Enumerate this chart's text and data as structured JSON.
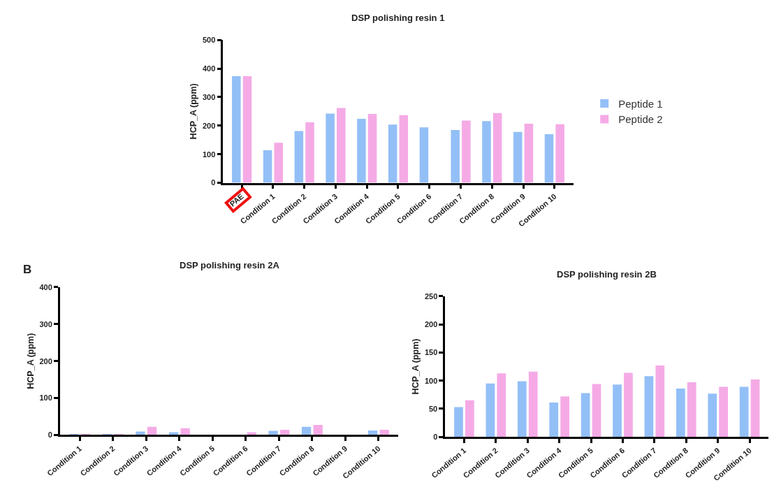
{
  "chart_data": [
    {
      "type": "bar",
      "title": "DSP polishing resin 1",
      "ylabel": "HCP_A (ppm)",
      "categories": [
        "PAE",
        "Condition 1",
        "Condition 2",
        "Condition 3",
        "Condition 4",
        "Condition 5",
        "Condition 6",
        "Condition 7",
        "Condition 8",
        "Condition 9",
        "Condition 10"
      ],
      "series": [
        {
          "name": "Peptide 1",
          "color": "#93bff7",
          "values": [
            373,
            114,
            181,
            242,
            224,
            204,
            194,
            185,
            216,
            178,
            170
          ]
        },
        {
          "name": "Peptide 2",
          "color": "#f5aae6",
          "values": [
            373,
            140,
            212,
            262,
            241,
            237,
            null,
            218,
            244,
            207,
            205
          ]
        }
      ],
      "ylim": [
        0,
        500
      ],
      "yticks": [
        0,
        100,
        200,
        300,
        400,
        500
      ],
      "legend": "right"
    },
    {
      "type": "bar",
      "title": "DSP polishing resin 2A",
      "ylabel": "HCP_A (ppm)",
      "annotations": [
        "B"
      ],
      "categories": [
        "Condition 1",
        "Condition 2",
        "Condition 3",
        "Condition 4",
        "Condition 5",
        "Condition 6",
        "Condition 7",
        "Condition 8",
        "Condition 9",
        "Condition 10"
      ],
      "series": [
        {
          "color": "#93bff7",
          "values": [
            1,
            1,
            9,
            7,
            null,
            null,
            11,
            22,
            null,
            12
          ]
        },
        {
          "color": "#f5aae6",
          "values": [
            3,
            2,
            22,
            18,
            null,
            7,
            14,
            27,
            null,
            14
          ]
        }
      ],
      "ylim": [
        0,
        400
      ],
      "yticks": [
        0,
        100,
        200,
        300,
        400
      ],
      "legend": false
    },
    {
      "type": "bar",
      "title": "DSP polishing resin 2B",
      "ylabel": "HCP_A (ppm)",
      "categories": [
        "Condition 1",
        "Condition 2",
        "Condition 3",
        "Condition 4",
        "Condition 5",
        "Condition 6",
        "Condition 7",
        "Condition 8",
        "Condition 9",
        "Condition 10"
      ],
      "series": [
        {
          "color": "#93bff7",
          "values": [
            53,
            95,
            99,
            61,
            78,
            93,
            108,
            86,
            77,
            89
          ]
        },
        {
          "color": "#f5aae6",
          "values": [
            65,
            113,
            116,
            72,
            94,
            114,
            127,
            97,
            89,
            102
          ]
        }
      ],
      "ylim": [
        0,
        250
      ],
      "yticks": [
        0,
        50,
        100,
        150,
        200,
        250
      ],
      "legend": false
    }
  ]
}
